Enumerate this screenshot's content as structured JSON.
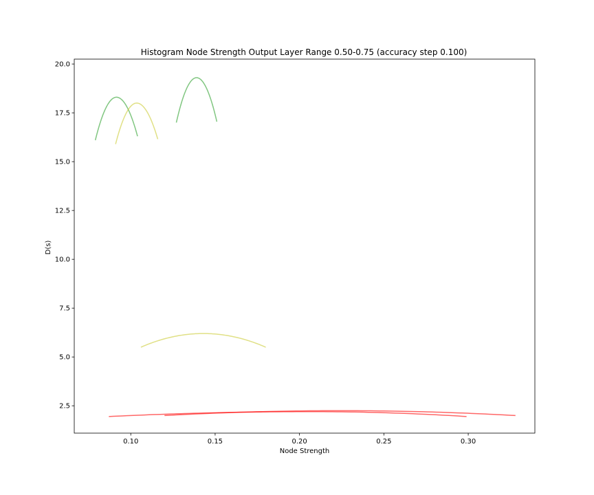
{
  "chart_data": {
    "type": "line",
    "title": "Histogram Node Strength Output Layer Range 0.50-0.75 (accuracy step 0.100)",
    "xlabel": "Node Strength",
    "ylabel": "D(s)",
    "xlim": [
      0.0665,
      0.3395
    ],
    "ylim": [
      1.1,
      20.25
    ],
    "xticks": [
      0.1,
      0.15,
      0.2,
      0.25,
      0.3
    ],
    "xtick_labels": [
      "0.10",
      "0.15",
      "0.20",
      "0.25",
      "0.30"
    ],
    "yticks": [
      2.5,
      5.0,
      7.5,
      10.0,
      12.5,
      15.0,
      17.5,
      20.0
    ],
    "ytick_labels": [
      "2.5",
      "5.0",
      "7.5",
      "10.0",
      "12.5",
      "15.0",
      "17.5",
      "20.0"
    ],
    "grid": false,
    "series": [
      {
        "color": "#2ca02c",
        "x_range": [
          0.079,
          0.104
        ],
        "vertex": [
          0.0915,
          18.3
        ],
        "y_ends": [
          16.1,
          16.3
        ]
      },
      {
        "color": "#cccc33",
        "x_range": [
          0.091,
          0.116
        ],
        "vertex": [
          0.1035,
          18.0
        ],
        "y_ends": [
          15.9,
          16.15
        ]
      },
      {
        "color": "#2ca02c",
        "x_range": [
          0.127,
          0.151
        ],
        "vertex": [
          0.139,
          19.3
        ],
        "y_ends": [
          17.0,
          17.05
        ]
      },
      {
        "color": "#cccc33",
        "x_range": [
          0.106,
          0.18
        ],
        "vertex": [
          0.143,
          6.2
        ],
        "y_ends": [
          5.5,
          5.5
        ]
      },
      {
        "color": "#ff0000",
        "x_range": [
          0.087,
          0.299
        ],
        "vertex": [
          0.207,
          2.2
        ],
        "y_ends": [
          1.95,
          1.95
        ]
      },
      {
        "color": "#ff0000",
        "x_range": [
          0.12,
          0.328
        ],
        "vertex": [
          0.224,
          2.25
        ],
        "y_ends": [
          2.0,
          2.0
        ]
      }
    ]
  }
}
